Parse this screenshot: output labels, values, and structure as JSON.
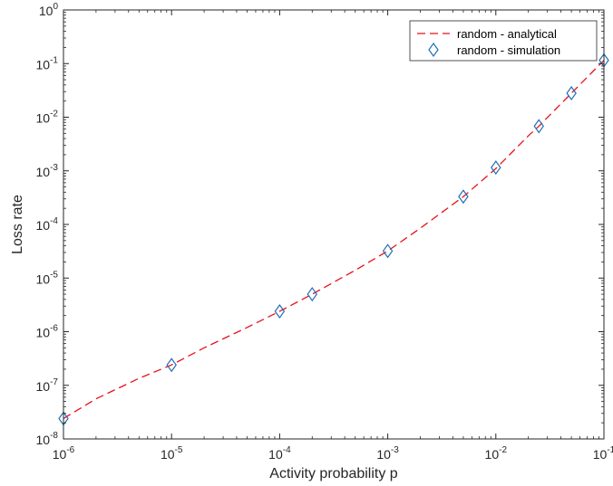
{
  "chart_data": {
    "type": "line",
    "xscale": "log",
    "yscale": "log",
    "xlabel": "Activity probability p",
    "ylabel": "Loss rate",
    "xlim": [
      1e-06,
      0.1
    ],
    "ylim": [
      1e-08,
      1
    ],
    "x_ticks": [
      {
        "base": "10",
        "exp": "-6",
        "value": 1e-06
      },
      {
        "base": "10",
        "exp": "-5",
        "value": 1e-05
      },
      {
        "base": "10",
        "exp": "-4",
        "value": 0.0001
      },
      {
        "base": "10",
        "exp": "-3",
        "value": 0.001
      },
      {
        "base": "10",
        "exp": "-2",
        "value": 0.01
      },
      {
        "base": "10",
        "exp": "-1",
        "value": 0.1
      }
    ],
    "y_ticks": [
      {
        "base": "10",
        "exp": "-8",
        "value": 1e-08
      },
      {
        "base": "10",
        "exp": "-7",
        "value": 1e-07
      },
      {
        "base": "10",
        "exp": "-6",
        "value": 1e-06
      },
      {
        "base": "10",
        "exp": "-5",
        "value": 1e-05
      },
      {
        "base": "10",
        "exp": "-4",
        "value": 0.0001
      },
      {
        "base": "10",
        "exp": "-3",
        "value": 0.001
      },
      {
        "base": "10",
        "exp": "-2",
        "value": 0.01
      },
      {
        "base": "10",
        "exp": "-1",
        "value": 0.1
      },
      {
        "base": "10",
        "exp": "0",
        "value": 1
      }
    ],
    "grid": false,
    "legend_position": "top-right",
    "series": [
      {
        "name": "random - analytical",
        "style": "dashed-line",
        "color": "#e8121c",
        "x": [
          1e-06,
          2e-06,
          5e-06,
          1e-05,
          2e-05,
          5e-05,
          0.0001,
          0.0002,
          0.0005,
          0.001,
          0.002,
          0.005,
          0.01,
          0.02,
          0.025,
          0.05,
          0.1
        ],
        "y": [
          2.4e-08,
          5.6e-08,
          1.35e-07,
          2.4e-07,
          5e-07,
          1.2e-06,
          2.4e-06,
          5e-06,
          1.4e-05,
          3.2e-05,
          8.5e-05,
          0.00033,
          0.0011,
          0.0045,
          0.0068,
          0.028,
          0.115
        ]
      },
      {
        "name": "random - simulation",
        "style": "diamond-markers",
        "color": "#1f6fb5",
        "x": [
          1e-06,
          1e-05,
          0.0001,
          0.0002,
          0.001,
          0.005,
          0.01,
          0.025,
          0.05,
          0.1
        ],
        "y": [
          2.4e-08,
          2.4e-07,
          2.4e-06,
          5e-06,
          3.2e-05,
          0.00033,
          0.00115,
          0.0068,
          0.028,
          0.115
        ]
      }
    ]
  }
}
